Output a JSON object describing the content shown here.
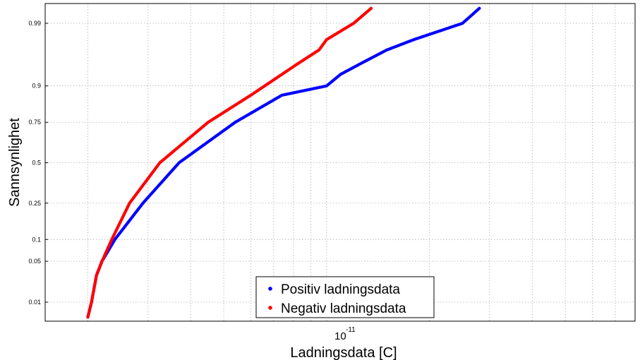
{
  "chart_data": {
    "type": "scatter",
    "title": "",
    "xlabel": "Ladningsdata [C]",
    "ylabel": "Sannsynlighet",
    "x_scale": "log",
    "y_scale": "normal-probability",
    "x_tick_label": {
      "base": "10",
      "exponent": "-11"
    },
    "yticks": [
      0.01,
      0.05,
      0.1,
      0.25,
      0.5,
      0.75,
      0.9,
      0.99
    ],
    "ytick_labels": [
      "0.01",
      "0.05",
      "0.1",
      "0.25",
      "0.5",
      "0.75",
      "0.9",
      "0.99"
    ],
    "grid": true,
    "legend_position": "bottom-center",
    "series": [
      {
        "name": "Positiv ladningsdata",
        "color": "#0000ff",
        "x": [
          2e-12,
          2.05e-12,
          2.12e-12,
          2.2e-12,
          2.4e-12,
          2.9e-12,
          3.7e-12,
          5.4e-12,
          7.4e-12,
          1e-11,
          1.1e-11,
          1.25e-11,
          1.5e-11,
          1.8e-11,
          2.5e-11,
          2.8e-11
        ],
        "y": [
          0.005,
          0.01,
          0.03,
          0.05,
          0.1,
          0.25,
          0.5,
          0.75,
          0.87,
          0.9,
          0.93,
          0.95,
          0.97,
          0.98,
          0.99,
          0.995
        ]
      },
      {
        "name": "Negativ ladningsdata",
        "color": "#ff0000",
        "x": [
          2e-12,
          2.05e-12,
          2.12e-12,
          2.2e-12,
          2.35e-12,
          2.65e-12,
          3.25e-12,
          4.5e-12,
          6e-12,
          8.2e-12,
          9.5e-12,
          1e-11,
          1.2e-11,
          1.35e-11
        ],
        "y": [
          0.005,
          0.01,
          0.03,
          0.05,
          0.1,
          0.25,
          0.5,
          0.75,
          0.87,
          0.95,
          0.97,
          0.98,
          0.99,
          0.995
        ]
      }
    ]
  }
}
